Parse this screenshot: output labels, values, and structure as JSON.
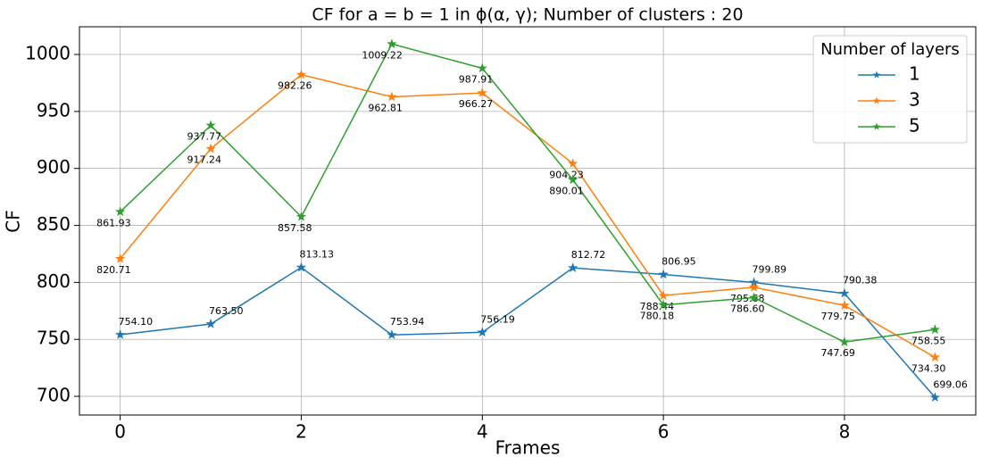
{
  "chart_data": {
    "type": "line",
    "title": "CF for a = b = 1 in ϕ(α, γ); Number of clusters : 20",
    "x_label": "Frames",
    "y_label": "CF",
    "x": [
      0,
      1,
      2,
      3,
      4,
      5,
      6,
      7,
      8,
      9
    ],
    "xlim": [
      -0.45,
      9.45
    ],
    "xticks": [
      0,
      2,
      4,
      6,
      8
    ],
    "ylim": [
      683.6,
      1024.3
    ],
    "yticks": [
      700,
      750,
      800,
      850,
      900,
      950,
      1000
    ],
    "grid": true,
    "marker": "star",
    "legend_title": "Number of layers",
    "legend_loc": "upper right",
    "series": [
      {
        "name": "1",
        "color": "#1f77b4",
        "values": [
          754.1,
          763.5,
          813.13,
          753.94,
          756.19,
          812.72,
          806.95,
          799.89,
          790.38,
          699.06
        ],
        "value_labels": [
          "754.10",
          "763.50",
          "813.13",
          "753.94",
          "756.19",
          "812.72",
          "806.95",
          "799.89",
          "790.38",
          "699.06"
        ]
      },
      {
        "name": "3",
        "color": "#ff7f0e",
        "values": [
          820.71,
          917.24,
          982.26,
          962.81,
          966.27,
          904.23,
          788.44,
          795.68,
          779.75,
          734.3
        ],
        "value_labels": [
          "820.71",
          "917.24",
          "982.26",
          "962.81",
          "966.27",
          "904.23",
          "788.44",
          "795.68",
          "779.75",
          "734.30"
        ]
      },
      {
        "name": "5",
        "color": "#2ca02c",
        "values": [
          861.93,
          937.77,
          857.58,
          1009.22,
          987.91,
          890.01,
          780.18,
          786.6,
          747.69,
          758.55
        ],
        "value_labels": [
          "861.93",
          "937.77",
          "857.58",
          "1009.22",
          "987.91",
          "890.01",
          "780.18",
          "786.60",
          "747.69",
          "758.55"
        ]
      }
    ]
  }
}
